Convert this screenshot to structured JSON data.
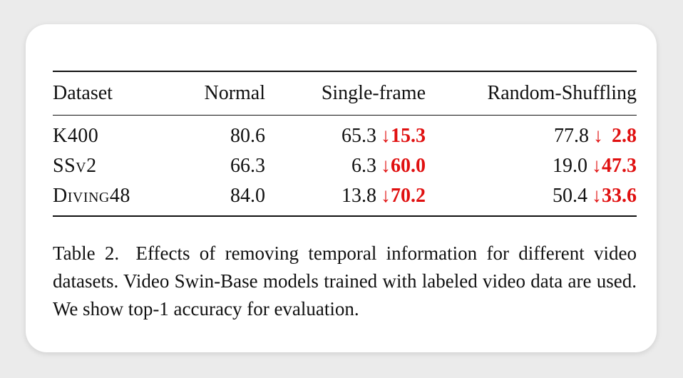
{
  "table": {
    "headers": [
      "Dataset",
      "Normal",
      "Single-frame",
      "Random-Shuffling"
    ],
    "rows": [
      {
        "dataset": "K400",
        "normal": "80.6",
        "single_value": "65.3",
        "single_arrow": "↓",
        "single_drop": "15.3",
        "random_value": "77.8",
        "random_arrow": "↓",
        "random_drop": "2.8"
      },
      {
        "dataset": "SSv2",
        "normal": "66.3",
        "single_value": "6.3",
        "single_arrow": "↓",
        "single_drop": "60.0",
        "random_value": "19.0",
        "random_arrow": "↓",
        "random_drop": "47.3"
      },
      {
        "dataset": "Diving48",
        "normal": "84.0",
        "single_value": "13.8",
        "single_arrow": "↓",
        "single_drop": "70.2",
        "random_value": "50.4",
        "random_arrow": "↓",
        "random_drop": "33.6"
      }
    ]
  },
  "caption": {
    "label": "Table 2.",
    "text": "Effects of removing temporal information for different video datasets. Video Swin-Base models trained with labeled video data are used. We show top-1 accuracy for evaluation."
  },
  "colors": {
    "drop": "#e01010",
    "background": "#ebebeb",
    "card": "#ffffff"
  }
}
